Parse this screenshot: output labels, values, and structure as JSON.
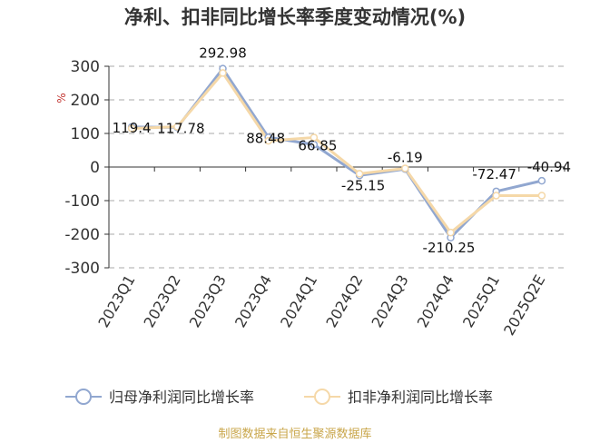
{
  "chart_data": {
    "type": "line",
    "title": "净利、扣非同比增长率季度变动情况(%)",
    "ylabel": "%",
    "ylim": [
      -300,
      300
    ],
    "yticks": [
      300,
      200,
      100,
      0,
      -100,
      -200,
      -300
    ],
    "grid": true,
    "legend_position": "bottom",
    "categories": [
      "2023Q1",
      "2023Q2",
      "2023Q3",
      "2023Q4",
      "2024Q1",
      "2024Q2",
      "2024Q3",
      "2024Q4",
      "2025Q1",
      "2025Q2E"
    ],
    "series": [
      {
        "name": "归母净利润同比增长率",
        "color": "#91a7d0",
        "values": [
          119.4,
          117.78,
          292.98,
          88.48,
          66.85,
          -25.15,
          -6.19,
          -210.25,
          -72.47,
          -40.94
        ],
        "labels": [
          "119.4",
          "117.78",
          "292.98",
          "88.48",
          "66.85",
          "-25.15",
          "-6.19",
          "-210.25",
          "-72.47",
          "-40.94"
        ]
      },
      {
        "name": "扣非净利润同比增长率",
        "color": "#f5d8a8",
        "values": [
          115,
          120,
          280,
          78,
          88,
          -20,
          -4,
          -195,
          -85,
          -85
        ]
      }
    ]
  },
  "source": "制图数据来自恒生聚源数据库"
}
